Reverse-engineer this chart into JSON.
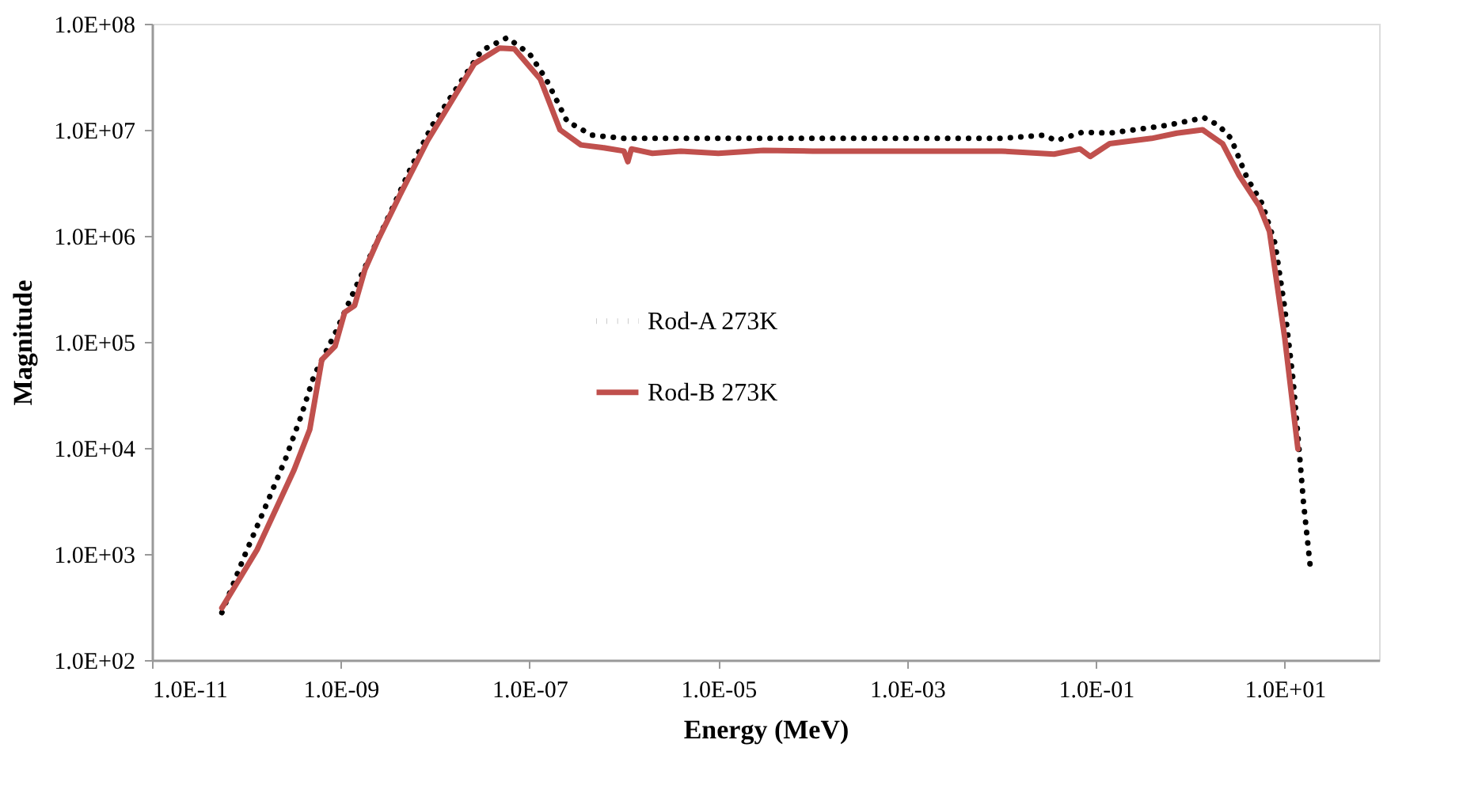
{
  "chart_data": {
    "type": "line",
    "xlabel": "Energy (MeV)",
    "ylabel": "Magnitude",
    "log": "xy",
    "grid": false,
    "legend": "center",
    "xlim": [
      1e-11,
      100
    ],
    "ylim": [
      100,
      100000000
    ],
    "xticks": [
      {
        "value": 1e-11,
        "label": "1.0E-11"
      },
      {
        "value": 1e-09,
        "label": "1.0E-09"
      },
      {
        "value": 1e-07,
        "label": "1.0E-07"
      },
      {
        "value": 1e-05,
        "label": "1.0E-05"
      },
      {
        "value": 0.001,
        "label": "1.0E-03"
      },
      {
        "value": 0.1,
        "label": "1.0E-01"
      },
      {
        "value": 10,
        "label": "1.0E+01"
      }
    ],
    "yticks": [
      {
        "value": 100,
        "label": "1.0E+02"
      },
      {
        "value": 1000,
        "label": "1.0E+03"
      },
      {
        "value": 10000,
        "label": "1.0E+04"
      },
      {
        "value": 100000,
        "label": "1.0E+05"
      },
      {
        "value": 1000000,
        "label": "1.0E+06"
      },
      {
        "value": 10000000,
        "label": "1.0E+07"
      },
      {
        "value": 100000000,
        "label": "1.0E+08"
      }
    ],
    "series": [
      {
        "name": "Rod-A 273K",
        "color": "#000000",
        "line_style": "dotted",
        "x": [
          5.5e-11,
          9.5e-11,
          1.7e-10,
          2.6e-10,
          3.8e-10,
          5.2e-10,
          8.7e-10,
          1.4e-09,
          2.2e-09,
          3.5e-09,
          5.6e-09,
          9.3e-09,
          1.7e-08,
          3.1e-08,
          5.8e-08,
          1e-07,
          1.5e-07,
          2.5e-07,
          4.6e-07,
          1e-06,
          1e-05,
          0.0001,
          0.001,
          0.01,
          0.028,
          0.038,
          0.072,
          0.14,
          0.56,
          1.4,
          2.0,
          2.7,
          4.0,
          5.8,
          7.9,
          10,
          12.3,
          14.5,
          15.8,
          18.6
        ],
        "values": [
          280,
          950,
          3200,
          7900,
          20000,
          48000,
          120000,
          310000,
          740000,
          1800000,
          4500000,
          11000000,
          25000000,
          56000000,
          74000000,
          52000000,
          30000000,
          12000000,
          8900000,
          8300000,
          8300000,
          8300000,
          8300000,
          8300000,
          8900000,
          7900000,
          9500000,
          9300000,
          11000000,
          13000000,
          11000000,
          8300000,
          3500000,
          2000000,
          850000,
          210000,
          43000,
          7800,
          3100,
          780
        ]
      },
      {
        "name": "Rod-B 273K",
        "color": "#c0504d",
        "line_style": "solid",
        "x": [
          5.5e-11,
          1.3e-10,
          3.2e-10,
          4.7e-10,
          6.3e-10,
          8.7e-10,
          1.1e-09,
          1.4e-09,
          1.8e-09,
          2.5e-09,
          4.4e-09,
          8.3e-09,
          2.6e-08,
          4.8e-08,
          6.9e-08,
          1.3e-07,
          2.1e-07,
          3.5e-07,
          5.9e-07,
          1e-06,
          1.1e-06,
          1.2e-06,
          2e-06,
          4e-06,
          1e-05,
          3e-05,
          0.0001,
          0.001,
          0.01,
          0.036,
          0.068,
          0.087,
          0.14,
          0.39,
          0.72,
          1.35,
          2.2,
          3.3,
          5.4,
          6.9,
          10,
          13.8
        ],
        "values": [
          310,
          1100,
          6200,
          15000,
          68000,
          91000,
          190000,
          220000,
          480000,
          930000,
          2600000,
          7900000,
          42000000,
          59000000,
          58000000,
          30000000,
          10000000,
          7200000,
          6800000,
          6300000,
          5000000,
          6600000,
          6000000,
          6300000,
          6000000,
          6400000,
          6300000,
          6300000,
          6300000,
          5900000,
          6600000,
          5600000,
          7400000,
          8300000,
          9300000,
          10000000,
          7400000,
          3700000,
          1900000,
          1100000,
          110000,
          9800
        ]
      }
    ]
  }
}
